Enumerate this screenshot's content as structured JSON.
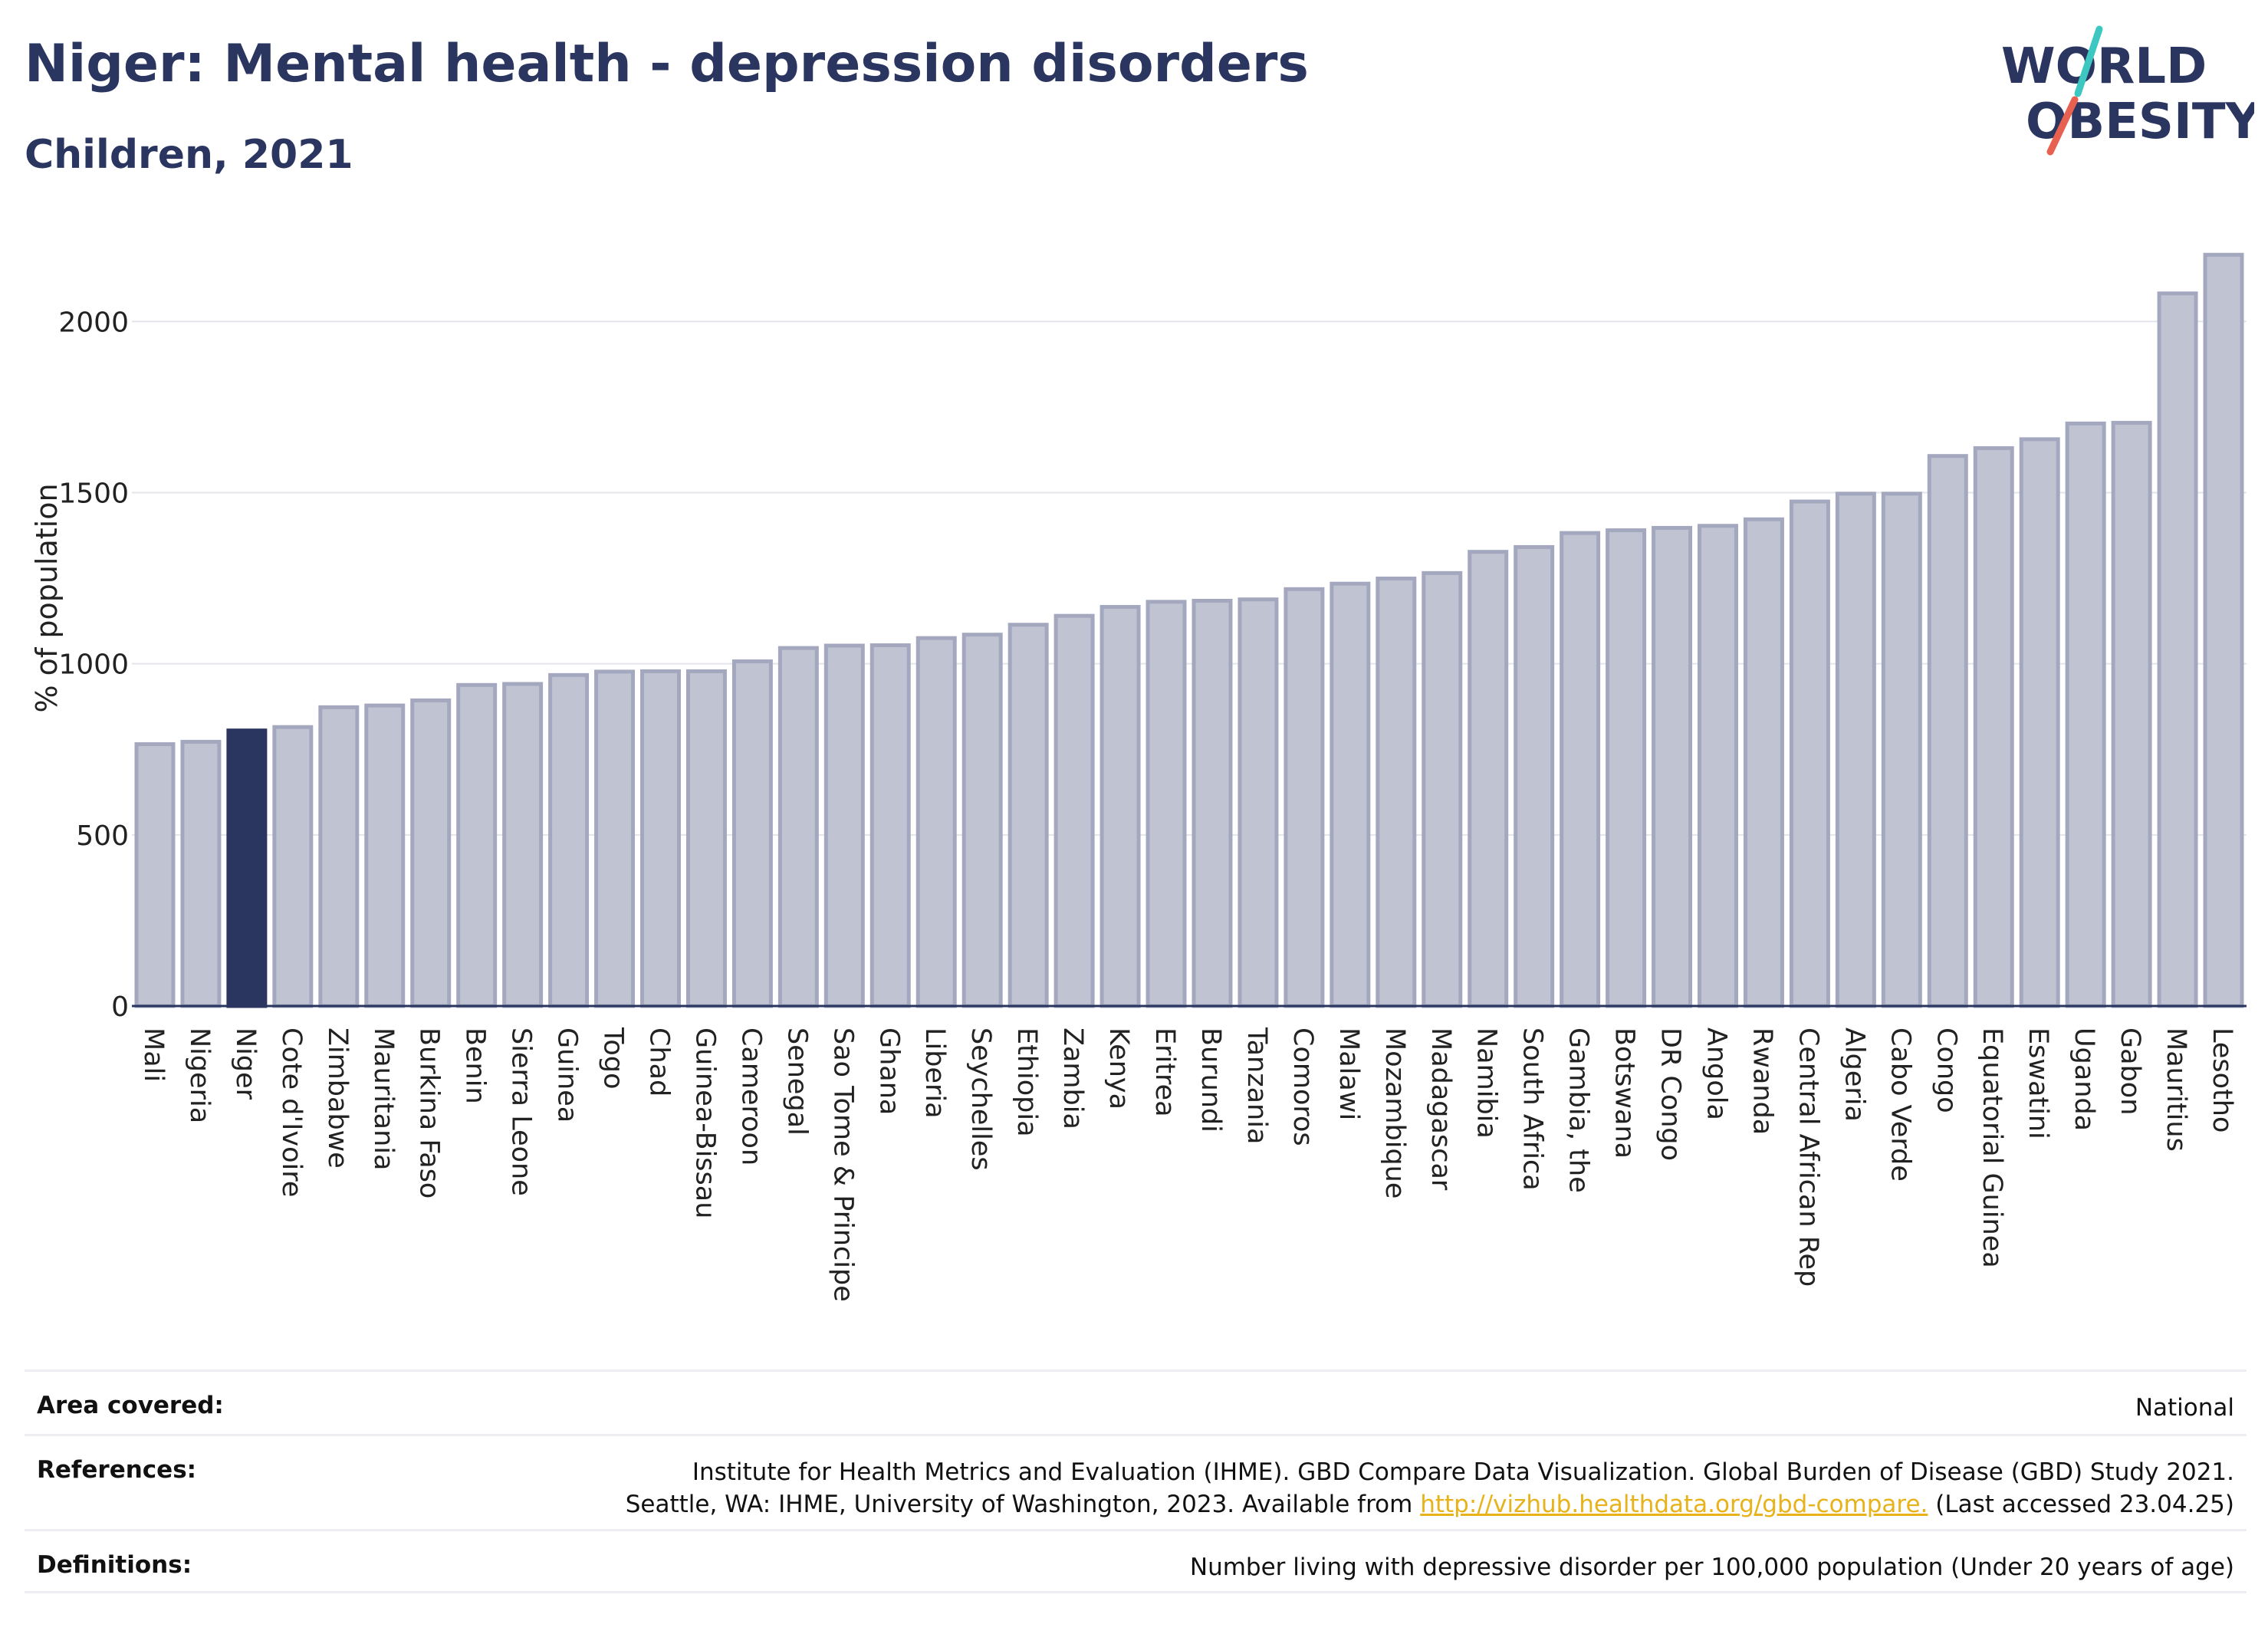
{
  "header": {
    "title": "Niger: Mental health - depression disorders",
    "subtitle": "Children, 2021"
  },
  "logo": {
    "line1": "WORLD",
    "line2": "OBESITY"
  },
  "colors": {
    "highlight": "#2a3560",
    "bar_fill": "#bfc3d2",
    "bar_stroke": "#a3a8bf",
    "slash_teal": "#3cc7c0",
    "slash_red": "#e8604f"
  },
  "chart_data": {
    "type": "bar",
    "ylabel": "% of population",
    "ylim": [
      0,
      2200
    ],
    "yticks": [
      0,
      500,
      1000,
      1500,
      2000
    ],
    "grid": true,
    "highlight_category": "Niger",
    "categories": [
      "Mali",
      "Nigeria",
      "Niger",
      "Cote d'Ivoire",
      "Zimbabwe",
      "Mauritania",
      "Burkina Faso",
      "Benin",
      "Sierra Leone",
      "Guinea",
      "Togo",
      "Chad",
      "Guinea-Bissau",
      "Cameroon",
      "Senegal",
      "Sao Tome & Principe",
      "Ghana",
      "Liberia",
      "Seychelles",
      "Ethiopia",
      "Zambia",
      "Kenya",
      "Eritrea",
      "Burundi",
      "Tanzania",
      "Comoros",
      "Malawi",
      "Mozambique",
      "Madagascar",
      "Namibia",
      "South Africa",
      "Gambia, the",
      "Botswana",
      "DR Congo",
      "Angola",
      "Rwanda",
      "Central African Rep",
      "Algeria",
      "Cabo Verde",
      "Congo",
      "Equatorial Guinea",
      "Eswatini",
      "Uganda",
      "Gabon",
      "Mauritius",
      "Lesotho"
    ],
    "values": [
      765,
      772,
      805,
      815,
      873,
      878,
      893,
      938,
      941,
      967,
      977,
      978,
      978,
      1007,
      1046,
      1053,
      1054,
      1075,
      1085,
      1114,
      1140,
      1166,
      1181,
      1184,
      1188,
      1218,
      1234,
      1249,
      1265,
      1327,
      1341,
      1382,
      1390,
      1397,
      1403,
      1422,
      1474,
      1497,
      1497,
      1607,
      1630,
      1656,
      1702,
      1704,
      2082,
      2195
    ]
  },
  "footer": {
    "area_label": "Area covered:",
    "area_value": "National",
    "references_label": "References:",
    "references_line1": "Institute for Health Metrics and Evaluation (IHME). GBD Compare Data Visualization. Global Burden of Disease (GBD) Study 2021.",
    "references_line2_pre": "Seattle, WA: IHME, University of Washington, 2023. Available from ",
    "references_link": "http://vizhub.healthdata.org/gbd-compare.",
    "references_line2_post": " (Last accessed 23.04.25)",
    "definitions_label": "Definitions:",
    "definitions_value": "Number living with depressive disorder per 100,000 population (Under 20 years of age)"
  }
}
